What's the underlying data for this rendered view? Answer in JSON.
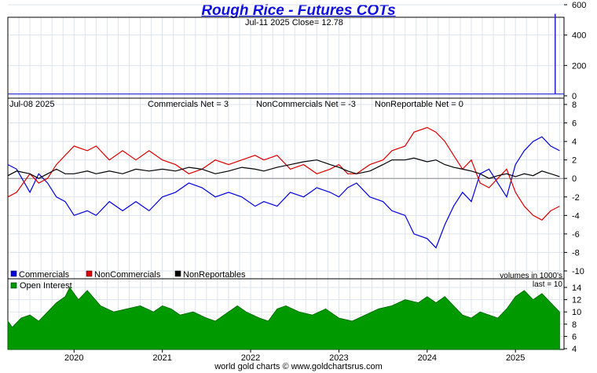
{
  "title": "Rough Rice - Futures COTs",
  "footer": "world gold charts © www.goldchartsrus.com",
  "chart_data": [
    {
      "panel": "price",
      "type": "line",
      "header": "Jul-11  2025  Close= 12.78",
      "ylim": [
        0,
        600
      ],
      "yticks": [
        0,
        200,
        400,
        600
      ],
      "color": "#2020d0",
      "spike": {
        "date": "2025-06",
        "value": 540
      },
      "baseline": 12
    },
    {
      "panel": "net_positions",
      "type": "line",
      "header_date": "Jul-08  2025",
      "header_items": [
        "Commercials Net = 3",
        "NonCommercials Net = -3",
        "NonReportable Net = 0"
      ],
      "ylim": [
        -10,
        8
      ],
      "yticks": [
        8,
        6,
        4,
        2,
        0,
        -2,
        -4,
        -6,
        -8,
        -10
      ],
      "volume_note": "volumes in 1000's",
      "series": [
        {
          "name": "Commercials",
          "color": "#0000dd",
          "values": [
            [
              2019.25,
              1.5
            ],
            [
              2019.35,
              1.0
            ],
            [
              2019.5,
              -1.5
            ],
            [
              2019.6,
              0.5
            ],
            [
              2019.7,
              -0.5
            ],
            [
              2019.8,
              -2.0
            ],
            [
              2019.9,
              -2.5
            ],
            [
              2020.0,
              -4.0
            ],
            [
              2020.15,
              -3.5
            ],
            [
              2020.25,
              -4.0
            ],
            [
              2020.4,
              -2.5
            ],
            [
              2020.55,
              -3.5
            ],
            [
              2020.7,
              -2.5
            ],
            [
              2020.85,
              -3.5
            ],
            [
              2021.0,
              -2.0
            ],
            [
              2021.15,
              -1.5
            ],
            [
              2021.3,
              -0.5
            ],
            [
              2021.45,
              -1.0
            ],
            [
              2021.6,
              -2.0
            ],
            [
              2021.75,
              -1.5
            ],
            [
              2021.9,
              -2.0
            ],
            [
              2022.05,
              -3.0
            ],
            [
              2022.15,
              -2.5
            ],
            [
              2022.3,
              -3.0
            ],
            [
              2022.45,
              -1.5
            ],
            [
              2022.6,
              -2.0
            ],
            [
              2022.75,
              -1.0
            ],
            [
              2022.9,
              -1.5
            ],
            [
              2023.0,
              -2.0
            ],
            [
              2023.1,
              -1.0
            ],
            [
              2023.2,
              -0.5
            ],
            [
              2023.35,
              -2.0
            ],
            [
              2023.5,
              -2.5
            ],
            [
              2023.6,
              -3.5
            ],
            [
              2023.75,
              -4.0
            ],
            [
              2023.85,
              -6.0
            ],
            [
              2024.0,
              -6.5
            ],
            [
              2024.1,
              -7.5
            ],
            [
              2024.2,
              -5.0
            ],
            [
              2024.3,
              -3.0
            ],
            [
              2024.4,
              -1.5
            ],
            [
              2024.5,
              -2.5
            ],
            [
              2024.6,
              0.5
            ],
            [
              2024.7,
              1.0
            ],
            [
              2024.8,
              -0.5
            ],
            [
              2024.9,
              -2.0
            ],
            [
              2025.0,
              1.5
            ],
            [
              2025.1,
              3.0
            ],
            [
              2025.2,
              4.0
            ],
            [
              2025.3,
              4.5
            ],
            [
              2025.4,
              3.5
            ],
            [
              2025.5,
              3.0
            ]
          ]
        },
        {
          "name": "NonCommercials",
          "color": "#dd0000",
          "values": [
            [
              2019.25,
              -2.0
            ],
            [
              2019.35,
              -1.5
            ],
            [
              2019.5,
              0.5
            ],
            [
              2019.6,
              -0.5
            ],
            [
              2019.7,
              0.0
            ],
            [
              2019.8,
              1.5
            ],
            [
              2019.9,
              2.5
            ],
            [
              2020.0,
              3.5
            ],
            [
              2020.15,
              3.0
            ],
            [
              2020.25,
              3.5
            ],
            [
              2020.4,
              2.0
            ],
            [
              2020.55,
              3.0
            ],
            [
              2020.7,
              2.0
            ],
            [
              2020.85,
              3.0
            ],
            [
              2021.0,
              2.0
            ],
            [
              2021.15,
              1.5
            ],
            [
              2021.3,
              0.5
            ],
            [
              2021.45,
              1.0
            ],
            [
              2021.6,
              2.0
            ],
            [
              2021.75,
              1.5
            ],
            [
              2021.9,
              2.0
            ],
            [
              2022.05,
              2.5
            ],
            [
              2022.15,
              2.0
            ],
            [
              2022.3,
              2.5
            ],
            [
              2022.45,
              1.0
            ],
            [
              2022.6,
              1.5
            ],
            [
              2022.75,
              0.5
            ],
            [
              2022.9,
              1.0
            ],
            [
              2023.0,
              1.5
            ],
            [
              2023.1,
              0.5
            ],
            [
              2023.2,
              0.5
            ],
            [
              2023.35,
              1.5
            ],
            [
              2023.5,
              2.0
            ],
            [
              2023.6,
              3.0
            ],
            [
              2023.75,
              3.5
            ],
            [
              2023.85,
              5.0
            ],
            [
              2024.0,
              5.5
            ],
            [
              2024.1,
              5.0
            ],
            [
              2024.2,
              4.0
            ],
            [
              2024.3,
              2.5
            ],
            [
              2024.4,
              1.0
            ],
            [
              2024.5,
              2.0
            ],
            [
              2024.6,
              -0.5
            ],
            [
              2024.7,
              -1.0
            ],
            [
              2024.8,
              0.0
            ],
            [
              2024.9,
              1.0
            ],
            [
              2025.0,
              -1.5
            ],
            [
              2025.1,
              -3.0
            ],
            [
              2025.2,
              -4.0
            ],
            [
              2025.3,
              -4.5
            ],
            [
              2025.4,
              -3.5
            ],
            [
              2025.5,
              -3.0
            ]
          ]
        },
        {
          "name": "NonReportables",
          "color": "#000000",
          "values": [
            [
              2019.25,
              0.3
            ],
            [
              2019.35,
              0.8
            ],
            [
              2019.5,
              0.5
            ],
            [
              2019.6,
              0.0
            ],
            [
              2019.7,
              0.5
            ],
            [
              2019.8,
              1.0
            ],
            [
              2019.9,
              0.5
            ],
            [
              2020.0,
              0.5
            ],
            [
              2020.15,
              0.8
            ],
            [
              2020.25,
              0.5
            ],
            [
              2020.4,
              0.8
            ],
            [
              2020.55,
              0.5
            ],
            [
              2020.7,
              1.0
            ],
            [
              2020.85,
              0.8
            ],
            [
              2021.0,
              1.0
            ],
            [
              2021.15,
              0.8
            ],
            [
              2021.3,
              1.2
            ],
            [
              2021.45,
              1.0
            ],
            [
              2021.6,
              0.5
            ],
            [
              2021.75,
              0.8
            ],
            [
              2021.9,
              1.2
            ],
            [
              2022.05,
              1.0
            ],
            [
              2022.15,
              0.8
            ],
            [
              2022.3,
              1.2
            ],
            [
              2022.45,
              1.5
            ],
            [
              2022.6,
              1.8
            ],
            [
              2022.75,
              2.0
            ],
            [
              2022.9,
              1.5
            ],
            [
              2023.0,
              1.2
            ],
            [
              2023.1,
              0.8
            ],
            [
              2023.2,
              0.5
            ],
            [
              2023.35,
              0.8
            ],
            [
              2023.5,
              1.5
            ],
            [
              2023.6,
              2.0
            ],
            [
              2023.75,
              2.0
            ],
            [
              2023.85,
              2.2
            ],
            [
              2024.0,
              1.8
            ],
            [
              2024.1,
              2.0
            ],
            [
              2024.2,
              1.5
            ],
            [
              2024.3,
              1.2
            ],
            [
              2024.4,
              1.0
            ],
            [
              2024.5,
              0.8
            ],
            [
              2024.6,
              0.5
            ],
            [
              2024.7,
              0.0
            ],
            [
              2024.8,
              0.3
            ],
            [
              2024.9,
              0.5
            ],
            [
              2025.0,
              0.2
            ],
            [
              2025.1,
              0.5
            ],
            [
              2025.2,
              0.3
            ],
            [
              2025.3,
              0.8
            ],
            [
              2025.4,
              0.5
            ],
            [
              2025.5,
              0.2
            ]
          ]
        }
      ]
    },
    {
      "panel": "open_interest",
      "type": "area",
      "last_note": "last = 10",
      "ylim": [
        4,
        14
      ],
      "yticks": [
        4,
        6,
        8,
        10,
        12,
        14
      ],
      "series": [
        {
          "name": "Open Interest",
          "color": "#009900",
          "values": [
            [
              2019.25,
              8.5
            ],
            [
              2019.3,
              7.5
            ],
            [
              2019.4,
              9.0
            ],
            [
              2019.5,
              9.5
            ],
            [
              2019.6,
              8.5
            ],
            [
              2019.7,
              10.0
            ],
            [
              2019.8,
              11.5
            ],
            [
              2019.9,
              12.5
            ],
            [
              2019.95,
              14.0
            ],
            [
              2020.05,
              12.0
            ],
            [
              2020.15,
              13.5
            ],
            [
              2020.3,
              11.0
            ],
            [
              2020.45,
              10.0
            ],
            [
              2020.6,
              10.5
            ],
            [
              2020.75,
              11.0
            ],
            [
              2020.9,
              10.0
            ],
            [
              2021.0,
              11.0
            ],
            [
              2021.1,
              10.5
            ],
            [
              2021.2,
              9.5
            ],
            [
              2021.35,
              10.0
            ],
            [
              2021.5,
              9.0
            ],
            [
              2021.6,
              8.5
            ],
            [
              2021.7,
              9.5
            ],
            [
              2021.85,
              11.0
            ],
            [
              2021.95,
              10.0
            ],
            [
              2022.1,
              9.0
            ],
            [
              2022.2,
              8.5
            ],
            [
              2022.3,
              10.5
            ],
            [
              2022.4,
              11.0
            ],
            [
              2022.55,
              10.0
            ],
            [
              2022.7,
              9.5
            ],
            [
              2022.85,
              10.5
            ],
            [
              2023.0,
              9.0
            ],
            [
              2023.15,
              8.5
            ],
            [
              2023.3,
              9.5
            ],
            [
              2023.45,
              10.5
            ],
            [
              2023.6,
              11.0
            ],
            [
              2023.75,
              12.0
            ],
            [
              2023.9,
              11.5
            ],
            [
              2024.0,
              12.5
            ],
            [
              2024.1,
              11.5
            ],
            [
              2024.2,
              12.5
            ],
            [
              2024.3,
              11.0
            ],
            [
              2024.4,
              9.5
            ],
            [
              2024.5,
              9.0
            ],
            [
              2024.6,
              10.0
            ],
            [
              2024.7,
              9.5
            ],
            [
              2024.8,
              9.0
            ],
            [
              2024.9,
              10.5
            ],
            [
              2025.0,
              12.5
            ],
            [
              2025.1,
              13.5
            ],
            [
              2025.2,
              12.0
            ],
            [
              2025.3,
              13.0
            ],
            [
              2025.4,
              11.5
            ],
            [
              2025.5,
              10.0
            ]
          ]
        }
      ]
    }
  ],
  "x_axis": {
    "xlim": [
      2019.25,
      2025.55
    ],
    "year_labels": [
      "2020",
      "2021",
      "2022",
      "2023",
      "2024",
      "2025"
    ],
    "year_values": [
      2020.0,
      2021.0,
      2022.0,
      2023.0,
      2024.0,
      2025.0
    ]
  },
  "legend": [
    "Commercials",
    "NonCommercials",
    "NonReportables"
  ]
}
